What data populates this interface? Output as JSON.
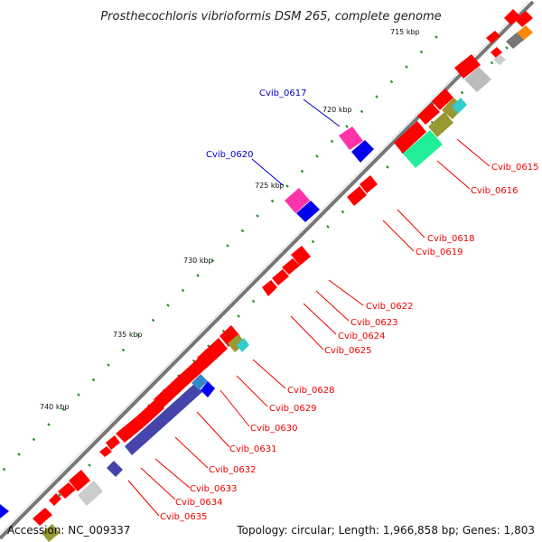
{
  "title": "Prosthecochloris vibrioformis DSM 265, complete genome",
  "ticks": [
    "715 kbp",
    "720 kbp",
    "725 kbp",
    "730 kbp",
    "735 kbp",
    "740 kbp"
  ],
  "blue_labels": [
    "Cvib_0617",
    "Cvib_0620"
  ],
  "red_labels": [
    "Cvib_0615",
    "Cvib_0616",
    "Cvib_0618",
    "Cvib_0619",
    "Cvib_0622",
    "Cvib_0623",
    "Cvib_0624",
    "Cvib_0625",
    "Cvib_0628",
    "Cvib_0629",
    "Cvib_0630",
    "Cvib_0631",
    "Cvib_0632",
    "Cvib_0633",
    "Cvib_0634",
    "Cvib_0635"
  ],
  "footer": {
    "accession": "Accession: NC_009337",
    "summary": "Topology: circular; Length: 1,966,858 bp; Genes: 1,803"
  },
  "colors": {
    "cds": "#ff0000",
    "blue_gene": "#0000ee",
    "magenta_gene": "#ff33aa",
    "navy_gene": "#4444aa",
    "label_red": "#ee0000",
    "label_blue": "#0000cc",
    "tick_green": "#228822",
    "backbone": "#777777"
  }
}
